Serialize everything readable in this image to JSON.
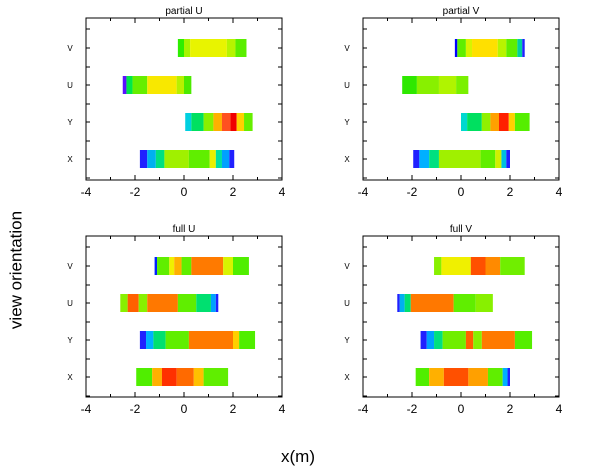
{
  "figure": {
    "xlabel": "x(m)",
    "ylabel": "view orientation"
  },
  "chart_data": [
    {
      "type": "heatmap",
      "title": "partial U",
      "xlim": [
        -4,
        4
      ],
      "xticks": [
        -4,
        -2,
        0,
        2,
        4
      ],
      "categories": [
        "X",
        "Y",
        "U",
        "V"
      ],
      "rows": [
        {
          "label": "V",
          "segments": [
            [
              -0.25,
              0,
              "#2eee00"
            ],
            [
              0,
              0.25,
              "#a6f400"
            ],
            [
              0.25,
              1.75,
              "#e8f400"
            ],
            [
              1.75,
              2.1,
              "#b6f400"
            ],
            [
              2.1,
              2.55,
              "#5aee00"
            ]
          ]
        },
        {
          "label": "U",
          "segments": [
            [
              -2.5,
              -2.35,
              "#5c10ff"
            ],
            [
              -2.35,
              -2.1,
              "#00e84a"
            ],
            [
              -2.1,
              -1.5,
              "#66ee00"
            ],
            [
              -1.5,
              -0.3,
              "#f8e800"
            ],
            [
              -0.3,
              0,
              "#b8f000"
            ],
            [
              0,
              0.3,
              "#4cea00"
            ]
          ]
        },
        {
          "label": "Y",
          "segments": [
            [
              0.05,
              0.3,
              "#00d0e0"
            ],
            [
              0.3,
              0.8,
              "#00e060"
            ],
            [
              0.8,
              1.2,
              "#88f000"
            ],
            [
              1.2,
              1.55,
              "#ffb000"
            ],
            [
              1.55,
              1.9,
              "#ff5020"
            ],
            [
              1.9,
              2.15,
              "#f00000"
            ],
            [
              2.15,
              2.45,
              "#ffd000"
            ],
            [
              2.45,
              2.8,
              "#66ee00"
            ]
          ]
        },
        {
          "label": "X",
          "segments": [
            [
              -1.8,
              -1.5,
              "#2020ff"
            ],
            [
              -1.5,
              -1.15,
              "#00b0f0"
            ],
            [
              -1.15,
              -0.8,
              "#00e080"
            ],
            [
              -0.8,
              0.2,
              "#a0f000"
            ],
            [
              0.2,
              1.05,
              "#60ee00"
            ],
            [
              1.05,
              1.3,
              "#e8f000"
            ],
            [
              1.3,
              1.55,
              "#00e0a0"
            ],
            [
              1.55,
              1.85,
              "#00a0ff"
            ],
            [
              1.85,
              2.05,
              "#2020ff"
            ]
          ]
        }
      ]
    },
    {
      "type": "heatmap",
      "title": "partial V",
      "xlim": [
        -4,
        4
      ],
      "xticks": [
        -4,
        -2,
        0,
        2,
        4
      ],
      "categories": [
        "X",
        "Y",
        "U",
        "V"
      ],
      "rows": [
        {
          "label": "V",
          "segments": [
            [
              -0.25,
              -0.15,
              "#0000ff"
            ],
            [
              -0.15,
              0.2,
              "#60ee00"
            ],
            [
              0.2,
              0.45,
              "#d8f400"
            ],
            [
              0.45,
              1.5,
              "#ffe000"
            ],
            [
              1.5,
              1.85,
              "#b8f400"
            ],
            [
              1.85,
              2.3,
              "#60ee00"
            ],
            [
              2.3,
              2.5,
              "#00d0a0"
            ],
            [
              2.5,
              2.6,
              "#2020ff"
            ]
          ]
        },
        {
          "label": "U",
          "segments": [
            [
              -2.4,
              -1.8,
              "#2ee800"
            ],
            [
              -1.8,
              -0.9,
              "#88f000"
            ],
            [
              -0.9,
              -0.2,
              "#b0f400"
            ],
            [
              -0.2,
              0.3,
              "#7af000"
            ]
          ]
        },
        {
          "label": "Y",
          "segments": [
            [
              0,
              0.25,
              "#00d8d0"
            ],
            [
              0.25,
              0.85,
              "#00e060"
            ],
            [
              0.85,
              1.2,
              "#90f000"
            ],
            [
              1.2,
              1.55,
              "#ffa000"
            ],
            [
              1.55,
              1.95,
              "#ff2000"
            ],
            [
              1.95,
              2.2,
              "#ffd000"
            ],
            [
              2.2,
              2.8,
              "#55ee00"
            ]
          ]
        },
        {
          "label": "X",
          "segments": [
            [
              -1.95,
              -1.7,
              "#2020ff"
            ],
            [
              -1.7,
              -1.3,
              "#00b0ff"
            ],
            [
              -1.3,
              -0.9,
              "#00e080"
            ],
            [
              -0.9,
              0.8,
              "#a0f000"
            ],
            [
              0.8,
              1.4,
              "#60ee00"
            ],
            [
              1.4,
              1.65,
              "#d0f000"
            ],
            [
              1.65,
              1.85,
              "#00c0e0"
            ],
            [
              1.85,
              2.0,
              "#2020ff"
            ]
          ]
        }
      ]
    },
    {
      "type": "heatmap",
      "title": "full U",
      "xlim": [
        -4,
        4
      ],
      "xticks": [
        -4,
        -2,
        0,
        2,
        4
      ],
      "categories": [
        "X",
        "Y",
        "U",
        "V"
      ],
      "rows": [
        {
          "label": "V",
          "segments": [
            [
              -1.2,
              -1.1,
              "#0020ff"
            ],
            [
              -1.1,
              -0.6,
              "#60ee00"
            ],
            [
              -0.6,
              -0.4,
              "#f0f000"
            ],
            [
              -0.4,
              -0.1,
              "#ffb000"
            ],
            [
              -0.1,
              0.3,
              "#60ee00"
            ],
            [
              0.3,
              1.6,
              "#ff7a00"
            ],
            [
              1.6,
              2.0,
              "#d8f400"
            ],
            [
              2.0,
              2.65,
              "#50ee00"
            ]
          ]
        },
        {
          "label": "U",
          "segments": [
            [
              -2.6,
              -2.3,
              "#88f000"
            ],
            [
              -2.3,
              -1.85,
              "#ff6000"
            ],
            [
              -1.85,
              -1.5,
              "#88f000"
            ],
            [
              -1.5,
              -0.25,
              "#ff7800"
            ],
            [
              -0.25,
              0.5,
              "#60ee00"
            ],
            [
              0.5,
              1.1,
              "#00e070"
            ],
            [
              1.1,
              1.3,
              "#00a0ff"
            ],
            [
              1.3,
              1.4,
              "#2020ff"
            ]
          ]
        },
        {
          "label": "Y",
          "segments": [
            [
              -1.8,
              -1.55,
              "#2020ff"
            ],
            [
              -1.55,
              -1.25,
              "#00b0ff"
            ],
            [
              -1.25,
              -0.75,
              "#00e070"
            ],
            [
              -0.75,
              0.2,
              "#60ee00"
            ],
            [
              0.2,
              2.0,
              "#ff7a00"
            ],
            [
              2.0,
              2.25,
              "#ffd000"
            ],
            [
              2.25,
              2.9,
              "#50ee00"
            ]
          ]
        },
        {
          "label": "X",
          "segments": [
            [
              -1.95,
              -1.3,
              "#50ee00"
            ],
            [
              -1.3,
              -0.9,
              "#ffb000"
            ],
            [
              -0.9,
              -0.3,
              "#ff3000"
            ],
            [
              -0.3,
              0.4,
              "#ff6a00"
            ],
            [
              0.4,
              0.8,
              "#ffc000"
            ],
            [
              0.8,
              1.8,
              "#60ee00"
            ]
          ]
        }
      ]
    },
    {
      "type": "heatmap",
      "title": "full V",
      "xlim": [
        -4,
        4
      ],
      "xticks": [
        -4,
        -2,
        0,
        2,
        4
      ],
      "categories": [
        "X",
        "Y",
        "U",
        "V"
      ],
      "rows": [
        {
          "label": "V",
          "segments": [
            [
              -1.1,
              -0.8,
              "#88f000"
            ],
            [
              -0.8,
              0.4,
              "#f0f000"
            ],
            [
              0.4,
              1.0,
              "#ff5000"
            ],
            [
              1.0,
              1.6,
              "#ff8a00"
            ],
            [
              1.6,
              2.6,
              "#70ee00"
            ]
          ]
        },
        {
          "label": "U",
          "segments": [
            [
              -2.6,
              -2.5,
              "#2020ff"
            ],
            [
              -2.5,
              -2.3,
              "#00b0f0"
            ],
            [
              -2.3,
              -2.05,
              "#00e070"
            ],
            [
              -2.05,
              -0.3,
              "#ff7800"
            ],
            [
              -0.3,
              0.6,
              "#60ee00"
            ],
            [
              0.6,
              1.3,
              "#88f000"
            ]
          ]
        },
        {
          "label": "Y",
          "segments": [
            [
              -1.65,
              -1.4,
              "#2020ff"
            ],
            [
              -1.4,
              -1.1,
              "#00a0ff"
            ],
            [
              -1.1,
              -0.75,
              "#00e080"
            ],
            [
              -0.75,
              0.2,
              "#70ee00"
            ],
            [
              0.2,
              0.5,
              "#ff6000"
            ],
            [
              0.5,
              0.85,
              "#88f000"
            ],
            [
              0.85,
              2.2,
              "#ff7a00"
            ],
            [
              2.2,
              2.9,
              "#55ee00"
            ]
          ]
        },
        {
          "label": "X",
          "segments": [
            [
              -1.85,
              -1.3,
              "#50ee00"
            ],
            [
              -1.3,
              -0.7,
              "#ffb000"
            ],
            [
              -0.7,
              0.3,
              "#ff5000"
            ],
            [
              0.3,
              1.1,
              "#ffa000"
            ],
            [
              1.1,
              1.7,
              "#60ee00"
            ],
            [
              1.7,
              1.9,
              "#00b0ff"
            ],
            [
              1.9,
              2.0,
              "#2020ff"
            ]
          ]
        }
      ]
    }
  ]
}
